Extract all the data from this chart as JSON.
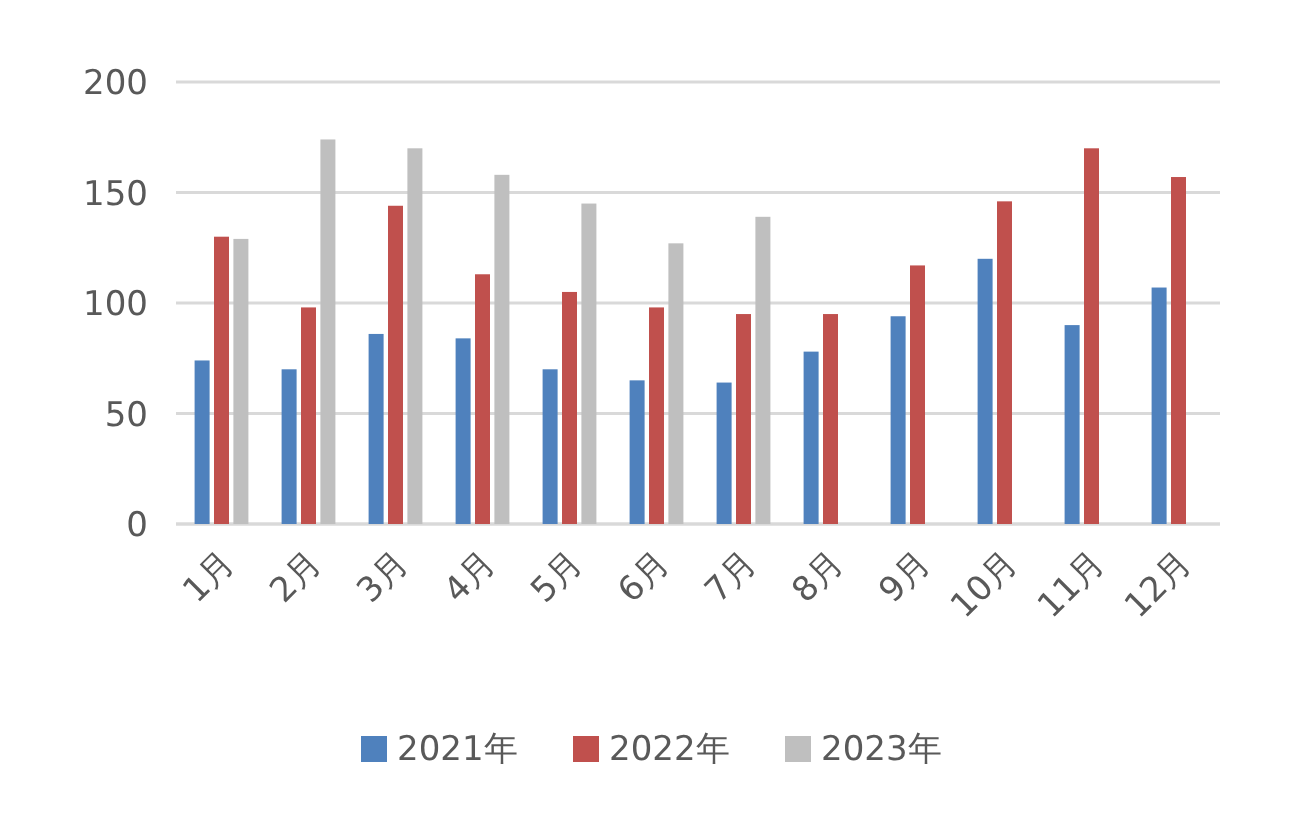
{
  "chart_data": {
    "type": "bar",
    "categories": [
      "1月",
      "2月",
      "3月",
      "4月",
      "5月",
      "6月",
      "7月",
      "8月",
      "9月",
      "10月",
      "11月",
      "12月"
    ],
    "series": [
      {
        "name": "2021年",
        "color": "#4f81bd",
        "values": [
          74,
          70,
          86,
          84,
          70,
          65,
          64,
          78,
          94,
          120,
          90,
          107
        ]
      },
      {
        "name": "2022年",
        "color": "#c0504d",
        "values": [
          130,
          98,
          144,
          113,
          105,
          98,
          95,
          95,
          117,
          146,
          170,
          157
        ]
      },
      {
        "name": "2023年",
        "color": "#bfbfbf",
        "values": [
          129,
          174,
          170,
          158,
          145,
          127,
          139,
          null,
          null,
          null,
          null,
          null
        ]
      }
    ],
    "ylim": [
      0,
      200
    ],
    "yticks": [
      0,
      50,
      100,
      150,
      200
    ],
    "grid": "y",
    "legend": "bottom"
  }
}
